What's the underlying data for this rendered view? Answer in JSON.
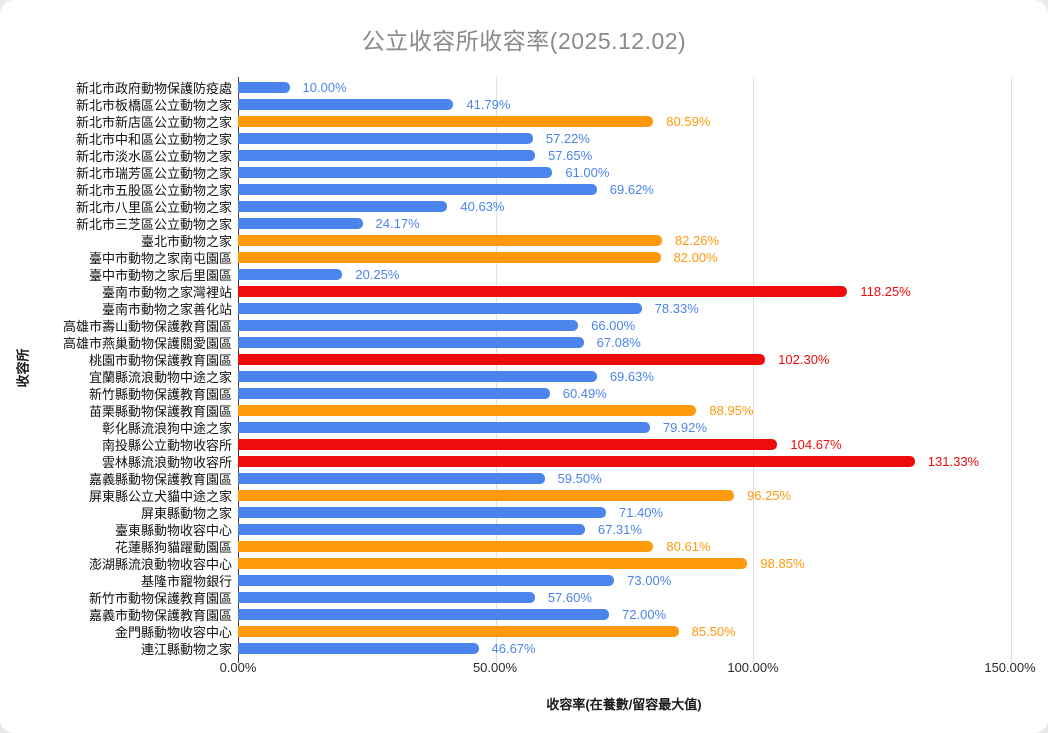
{
  "palette": {
    "blue": "#4b84ec",
    "orange": "#ff9a0d",
    "red": "#ee0c0c"
  },
  "chart_data": {
    "type": "bar",
    "orientation": "horizontal",
    "title": "公立收容所收容率(2025.12.02)",
    "xlabel": "收容率(在養數/留容最大值)",
    "ylabel": "收容所",
    "xlim": [
      0,
      150
    ],
    "x_tick_labels": [
      "0.00%",
      "50.00%",
      "100.00%",
      "150.00%"
    ],
    "grid": "vertical-gridlines-at-ticks",
    "legend": "none",
    "color_rule": "blue < 80%, orange 80-100%, red >= 100%",
    "categories": [
      "新北市政府動物保護防疫處",
      "新北市板橋區公立動物之家",
      "新北市新店區公立動物之家",
      "新北市中和區公立動物之家",
      "新北市淡水區公立動物之家",
      "新北市瑞芳區公立動物之家",
      "新北市五股區公立動物之家",
      "新北市八里區公立動物之家",
      "新北市三芝區公立動物之家",
      "臺北市動物之家",
      "臺中市動物之家南屯園區",
      "臺中市動物之家后里園區",
      "臺南市動物之家灣裡站",
      "臺南市動物之家善化站",
      "高雄市壽山動物保護教育園區",
      "高雄市燕巢動物保護關愛園區",
      "桃園市動物保護教育園區",
      "宜蘭縣流浪動物中途之家",
      "新竹縣動物保護教育園區",
      "苗栗縣動物保護教育園區",
      "彰化縣流浪狗中途之家",
      "南投縣公立動物收容所",
      "雲林縣流浪動物收容所",
      "嘉義縣動物保護教育園區",
      "屏東縣公立犬貓中途之家",
      "屏東縣動物之家",
      "臺東縣動物收容中心",
      "花蓮縣狗貓躍動園區",
      "澎湖縣流浪動物收容中心",
      "基隆市寵物銀行",
      "新竹市動物保護教育園區",
      "嘉義市動物保護教育園區",
      "金門縣動物收容中心",
      "連江縣動物之家"
    ],
    "values": [
      10.0,
      41.79,
      80.59,
      57.22,
      57.65,
      61.0,
      69.62,
      40.63,
      24.17,
      82.26,
      82.0,
      20.25,
      118.25,
      78.33,
      66.0,
      67.08,
      102.3,
      69.63,
      60.49,
      88.95,
      79.92,
      104.67,
      131.33,
      59.5,
      96.25,
      71.4,
      67.31,
      80.61,
      98.85,
      73.0,
      57.6,
      72.0,
      85.5,
      46.67
    ],
    "value_labels": [
      "10.00%",
      "41.79%",
      "80.59%",
      "57.22%",
      "57.65%",
      "61.00%",
      "69.62%",
      "40.63%",
      "24.17%",
      "82.26%",
      "82.00%",
      "20.25%",
      "118.25%",
      "78.33%",
      "66.00%",
      "67.08%",
      "102.30%",
      "69.63%",
      "60.49%",
      "88.95%",
      "79.92%",
      "104.67%",
      "131.33%",
      "59.50%",
      "96.25%",
      "71.40%",
      "67.31%",
      "80.61%",
      "98.85%",
      "73.00%",
      "57.60%",
      "72.00%",
      "85.50%",
      "46.67%"
    ],
    "colors": [
      "blue",
      "blue",
      "orange",
      "blue",
      "blue",
      "blue",
      "blue",
      "blue",
      "blue",
      "orange",
      "orange",
      "blue",
      "red",
      "blue",
      "blue",
      "blue",
      "red",
      "blue",
      "blue",
      "orange",
      "blue",
      "red",
      "red",
      "blue",
      "orange",
      "blue",
      "blue",
      "orange",
      "orange",
      "blue",
      "blue",
      "blue",
      "orange",
      "blue"
    ]
  }
}
